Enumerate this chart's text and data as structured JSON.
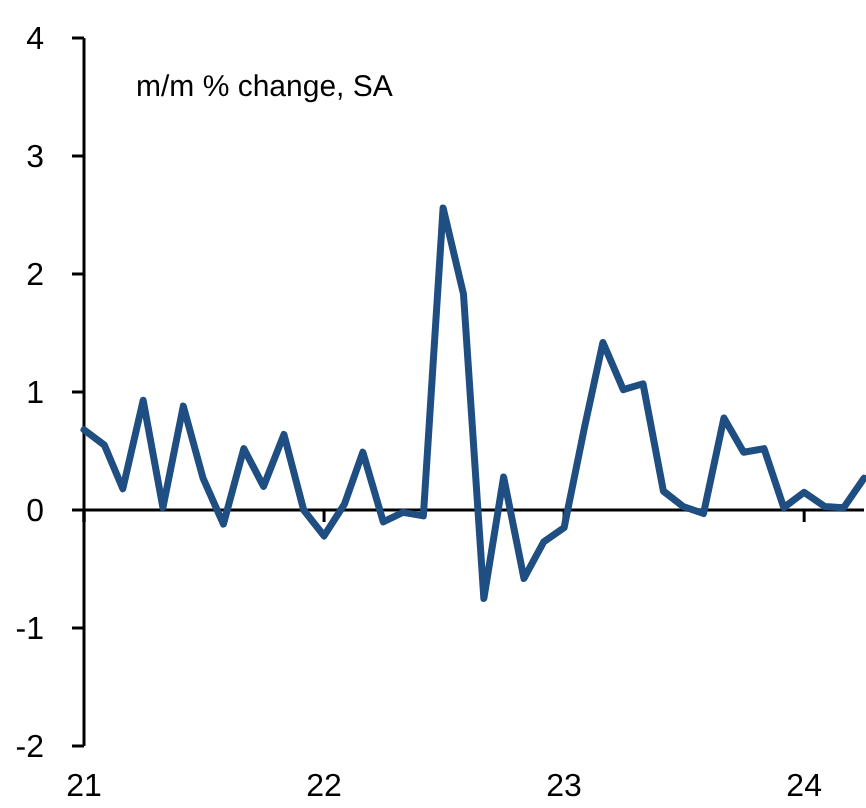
{
  "chart_data": {
    "type": "line",
    "title": "m/m % change, SA",
    "x": [
      "2021-01",
      "2021-02",
      "2021-03",
      "2021-04",
      "2021-05",
      "2021-06",
      "2021-07",
      "2021-08",
      "2021-09",
      "2021-10",
      "2021-11",
      "2021-12",
      "2022-01",
      "2022-02",
      "2022-03",
      "2022-04",
      "2022-05",
      "2022-06",
      "2022-07",
      "2022-08",
      "2022-09",
      "2022-10",
      "2022-11",
      "2022-12",
      "2023-01",
      "2023-02",
      "2023-03",
      "2023-04",
      "2023-05",
      "2023-06",
      "2023-07",
      "2023-08",
      "2023-09",
      "2023-10",
      "2023-11",
      "2023-12",
      "2024-01",
      "2024-02",
      "2024-03",
      "2024-04"
    ],
    "series": [
      {
        "color": "#1f4e82",
        "values": [
          0.68,
          0.55,
          0.18,
          0.93,
          0.02,
          0.88,
          0.27,
          -0.12,
          0.52,
          0.2,
          0.64,
          0.0,
          -0.22,
          0.05,
          0.49,
          -0.1,
          -0.02,
          -0.05,
          2.56,
          1.83,
          -0.75,
          0.28,
          -0.58,
          -0.27,
          -0.15,
          0.7,
          1.42,
          1.02,
          1.07,
          0.16,
          0.03,
          -0.03,
          0.78,
          0.49,
          0.52,
          0.02,
          0.15,
          0.03,
          0.02,
          0.27
        ]
      }
    ],
    "xlim": [
      "2021-01",
      "2024-04"
    ],
    "xticks": [
      {
        "value": "2021-01",
        "label": "21"
      },
      {
        "value": "2022-01",
        "label": "22"
      },
      {
        "value": "2023-01",
        "label": "23"
      },
      {
        "value": "2024-01",
        "label": "24"
      }
    ],
    "ylim": [
      -2,
      4
    ],
    "yticks": [
      -2,
      -1,
      0,
      1,
      2,
      3,
      4
    ],
    "marker": "none",
    "line_style": "solid"
  }
}
